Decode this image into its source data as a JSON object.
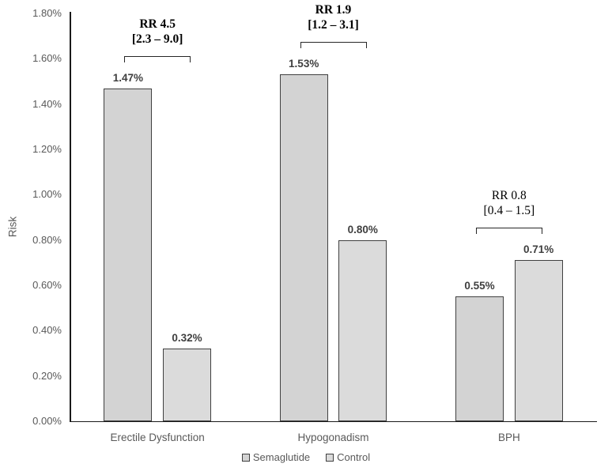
{
  "chart_data": {
    "type": "bar",
    "title": "",
    "xlabel": "",
    "ylabel": "Risk",
    "ylim": [
      0,
      1.8
    ],
    "ytick_step": 0.2,
    "ytick_suffix": "%",
    "grid": false,
    "legend_position": "bottom",
    "categories": [
      "Erectile Dysfunction",
      "Hypogonadism",
      "BPH"
    ],
    "series": [
      {
        "name": "Semaglutide",
        "values": [
          1.47,
          1.53,
          0.55
        ],
        "labels": [
          "1.47%",
          "1.53%",
          "0.55%"
        ],
        "fill": "#d3d3d3"
      },
      {
        "name": "Control",
        "values": [
          0.32,
          0.8,
          0.71
        ],
        "labels": [
          "0.32%",
          "0.80%",
          "0.71%"
        ],
        "fill": "#dbdbdb"
      }
    ],
    "annotations": [
      {
        "line1": "RR 4.5",
        "line2": "[2.3 – 9.0]",
        "bold": true
      },
      {
        "line1": "RR 1.9",
        "line2": "[1.2 – 3.1]",
        "bold": true
      },
      {
        "line1": "RR 0.8",
        "line2": "[0.4 – 1.5]",
        "bold": false
      }
    ]
  },
  "colors": {
    "axis": "#1a1a1a",
    "bar_border": "#404040",
    "tick_text": "#595959",
    "value_text": "#3f3f3f",
    "annotation_text": "#000000"
  }
}
